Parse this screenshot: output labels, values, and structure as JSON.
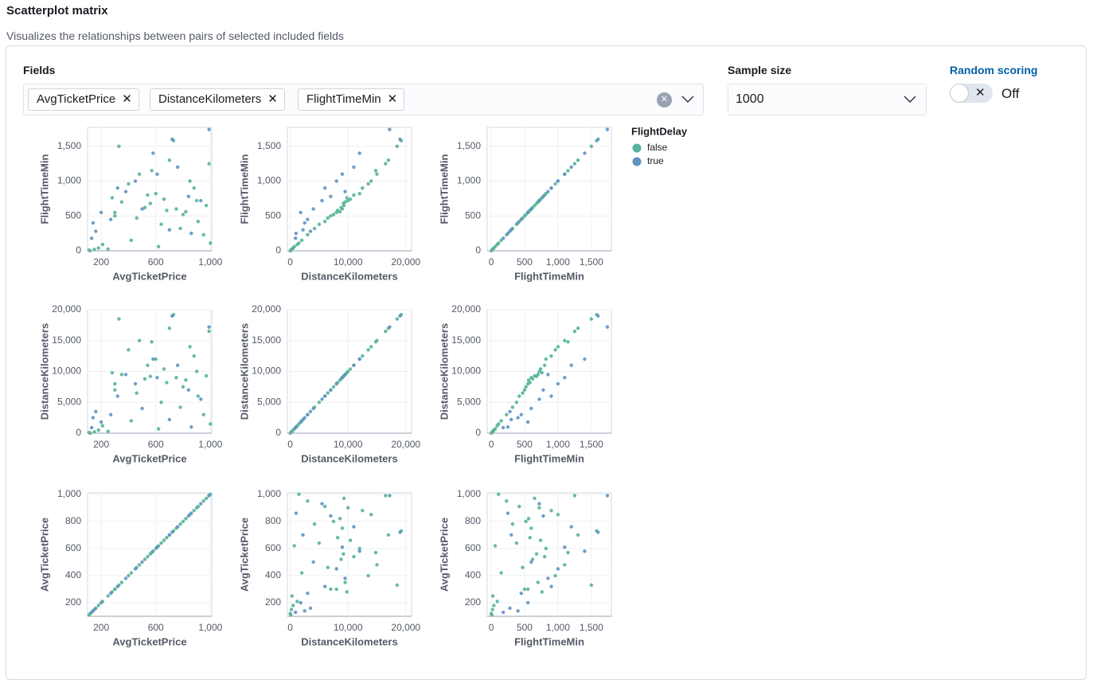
{
  "header": {
    "title": "Scatterplot matrix",
    "description": "Visualizes the relationships between pairs of selected included fields"
  },
  "form": {
    "fields_label": "Fields",
    "sample_size_label": "Sample size",
    "sample_size": 1000,
    "random_scoring_label": "Random scoring",
    "random_scoring": "Off"
  },
  "chart_data": {
    "type": "scatter-matrix",
    "fields": [
      "AvgTicketPrice",
      "DistanceKilometers",
      "FlightTimeMin"
    ],
    "axes": [
      {
        "xlim": [
          100,
          1010
        ],
        "xticks": [
          200,
          600,
          {
            "value": 1000,
            "label": "1,000"
          }
        ],
        "ylim": [
          100,
          1010
        ],
        "yticks": [
          200,
          400,
          600,
          800,
          {
            "value": 1000,
            "label": "1,000"
          }
        ]
      },
      {
        "xlim": [
          -500,
          21000
        ],
        "xticks": [
          0,
          {
            "value": 10000,
            "label": "10,000"
          },
          {
            "value": 20000,
            "label": "20,000"
          }
        ],
        "ylim": [
          0,
          20000
        ],
        "yticks": [
          0,
          {
            "value": 5000,
            "label": "5,000"
          },
          {
            "value": 10000,
            "label": "10,000"
          },
          {
            "value": 15000,
            "label": "15,000"
          },
          {
            "value": 20000,
            "label": "20,000"
          }
        ]
      },
      {
        "xlim": [
          -60,
          1800
        ],
        "xticks": [
          0,
          500,
          {
            "value": 1000,
            "label": "1,000"
          },
          {
            "value": 1500,
            "label": "1,500"
          }
        ],
        "ylim": [
          0,
          1770
        ],
        "yticks": [
          0,
          500,
          {
            "value": 1000,
            "label": "1,000"
          },
          {
            "value": 1500,
            "label": "1,500"
          }
        ]
      }
    ],
    "legend_title": "FlightDelay",
    "series": [
      {
        "name": "false",
        "color": "#54b399",
        "AvgTicketPrice": [
          150,
          180,
          120,
          210,
          300,
          350,
          420,
          480,
          520,
          560,
          600,
          640,
          700,
          750,
          800,
          850,
          900,
          950,
          990,
          280,
          330,
          460,
          540,
          620,
          680,
          730,
          780,
          880,
          970,
          250,
          400,
          660,
          820,
          910,
          570,
          110,
          1000,
          300
        ],
        "DistanceKilometers": [
          200,
          500,
          0,
          1200,
          8000,
          9500,
          2000,
          15000,
          8800,
          9200,
          12000,
          5000,
          17000,
          9000,
          7500,
          14000,
          10000,
          3000,
          16500,
          9800,
          18500,
          6500,
          11000,
          700,
          8200,
          19200,
          4200,
          12500,
          9300,
          300,
          13500,
          10400,
          8600,
          6000,
          14800,
          100,
          1500,
          7000
        ],
        "FlightTimeMin": [
          20,
          40,
          0,
          90,
          550,
          700,
          150,
          1100,
          620,
          680,
          820,
          380,
          1300,
          600,
          520,
          1000,
          720,
          230,
          1250,
          760,
          1500,
          470,
          800,
          60,
          580,
          1580,
          320,
          900,
          650,
          25,
          960,
          740,
          560,
          420,
          1150,
          10,
          110,
          500
        ]
      },
      {
        "name": "true",
        "color": "#6092c0",
        "AvgTicketPrice": [
          140,
          200,
          160,
          320,
          450,
          500,
          610,
          700,
          760,
          840,
          930,
          990,
          380,
          270,
          580,
          860,
          130,
          720
        ],
        "DistanceKilometers": [
          2500,
          1800,
          3500,
          6000,
          8000,
          4000,
          9000,
          2200,
          11000,
          7000,
          5500,
          17200,
          9500,
          3000,
          12000,
          1000,
          900,
          19000
        ],
        "FlightTimeMin": [
          400,
          550,
          280,
          900,
          1000,
          600,
          1100,
          300,
          1200,
          780,
          720,
          1740,
          850,
          450,
          1400,
          250,
          180,
          1600
        ]
      }
    ]
  }
}
